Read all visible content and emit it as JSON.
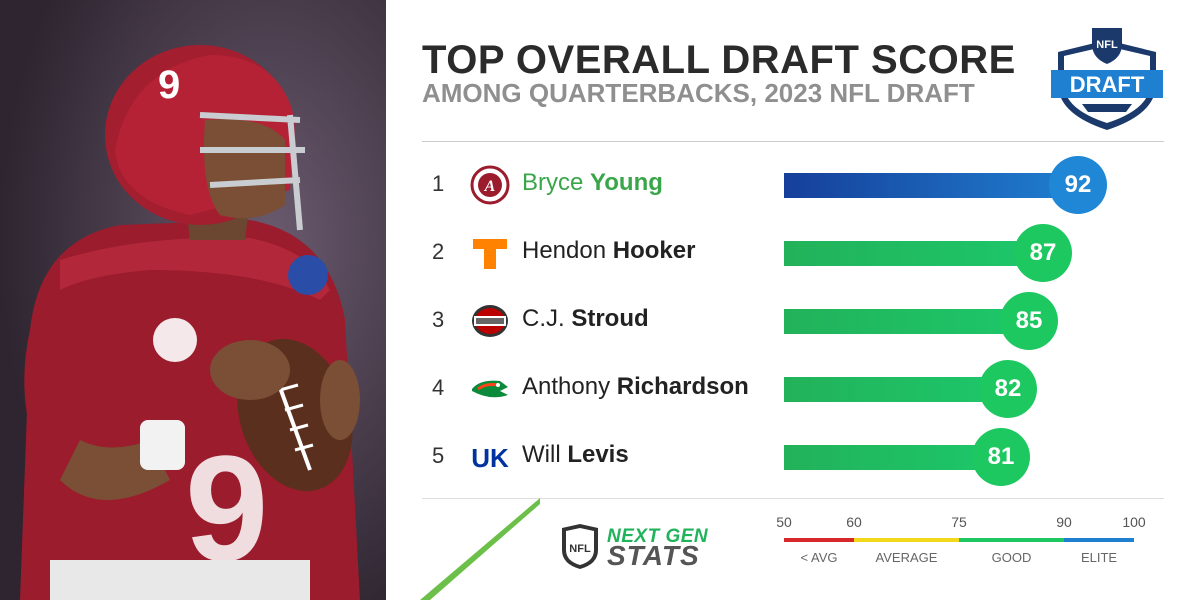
{
  "header": {
    "title": "TOP OVERALL DRAFT SCORE",
    "subtitle": "AMONG QUARTERBACKS, 2023 NFL DRAFT",
    "badge_top": "NFL",
    "badge_main": "DRAFT"
  },
  "players": [
    {
      "rank": "1",
      "first": "Bryce",
      "last": "Young",
      "score": "92",
      "team_icon": "alabama-logo",
      "highlight": true
    },
    {
      "rank": "2",
      "first": "Hendon",
      "last": "Hooker",
      "score": "87",
      "team_icon": "tennessee-logo",
      "highlight": false
    },
    {
      "rank": "3",
      "first": "C.J.",
      "last": "Stroud",
      "score": "85",
      "team_icon": "ohio-state-logo",
      "highlight": false
    },
    {
      "rank": "4",
      "first": "Anthony",
      "last": "Richardson",
      "score": "82",
      "team_icon": "florida-logo",
      "highlight": false
    },
    {
      "rank": "5",
      "first": "Will",
      "last": "Levis",
      "score": "81",
      "team_icon": "kentucky-logo",
      "highlight": false
    }
  ],
  "chart_data": {
    "type": "bar",
    "orientation": "horizontal",
    "title": "TOP OVERALL DRAFT SCORE",
    "subtitle": "AMONG QUARTERBACKS, 2023 NFL DRAFT",
    "categories": [
      "Bryce Young",
      "Hendon Hooker",
      "C.J. Stroud",
      "Anthony Richardson",
      "Will Levis"
    ],
    "values": [
      92,
      87,
      85,
      82,
      81
    ],
    "xlim": [
      50,
      100
    ],
    "grid": false
  },
  "scale": {
    "ticks": [
      "50",
      "60",
      "75",
      "90",
      "100"
    ],
    "tick_values": [
      50,
      60,
      75,
      90,
      100
    ],
    "categories": [
      {
        "label": "< AVG",
        "from": 50,
        "to": 60,
        "color": "#d62828"
      },
      {
        "label": "AVERAGE",
        "from": 60,
        "to": 75,
        "color": "#f2d81a"
      },
      {
        "label": "GOOD",
        "from": 75,
        "to": 90,
        "color": "#1ec860"
      },
      {
        "label": "ELITE",
        "from": 90,
        "to": 100,
        "color": "#1f7fd0"
      }
    ]
  },
  "footer": {
    "brand_line1": "NEXT GEN",
    "brand_line2": "STATS",
    "nfl_shield": "NFL"
  },
  "colors": {
    "good": "#1ec860",
    "elite": "#1f7fd0",
    "highlight_name": "#3aa64a"
  }
}
